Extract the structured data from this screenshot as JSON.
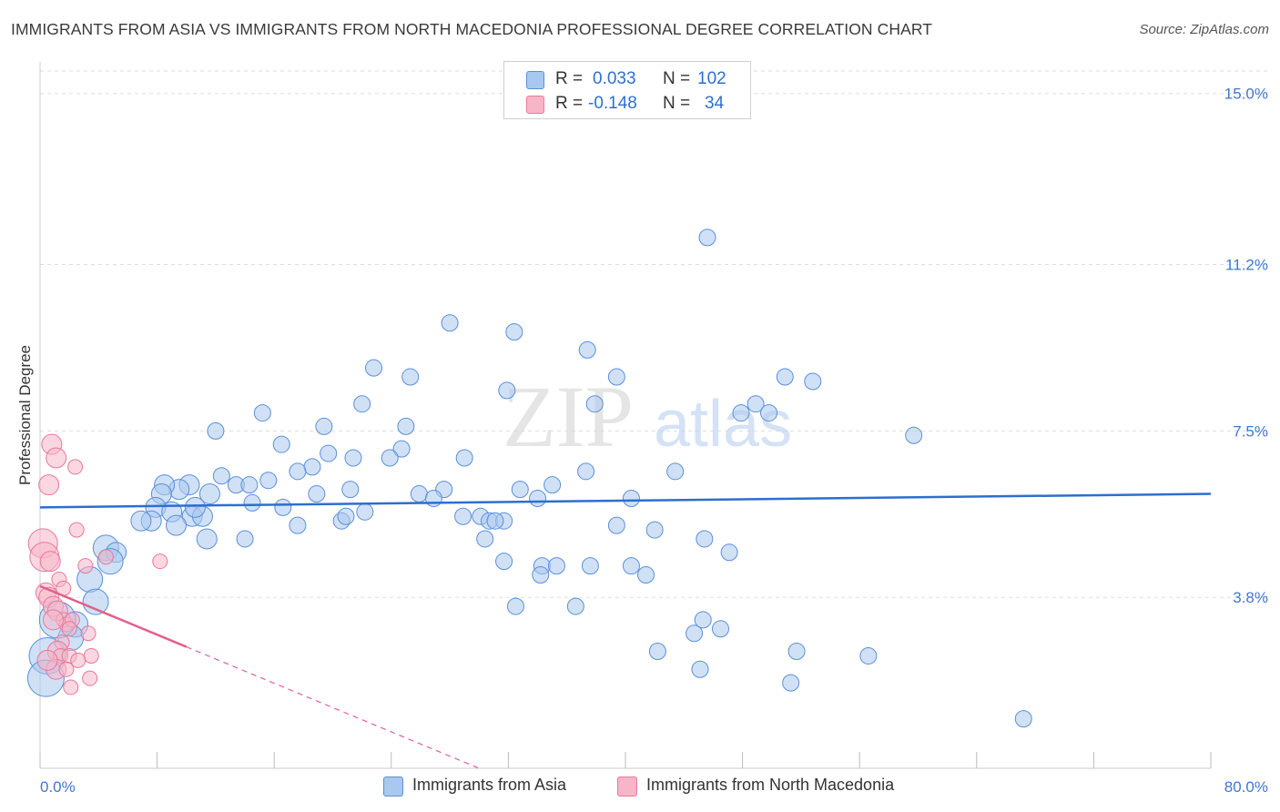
{
  "title": "IMMIGRANTS FROM ASIA VS IMMIGRANTS FROM NORTH MACEDONIA PROFESSIONAL DEGREE CORRELATION CHART",
  "source": "Source: ZipAtlas.com",
  "watermark": {
    "zip": "ZIP",
    "atlas": "atlas"
  },
  "legend_top": {
    "rows": [
      {
        "r_label": "R = ",
        "r_value": "0.033",
        "n_label": "N = ",
        "n_value": "102"
      },
      {
        "r_label": "R = ",
        "r_value": "-0.148",
        "n_label": "N = ",
        "n_value": "34"
      }
    ]
  },
  "colors": {
    "asia_fill": "#a9c8ef",
    "asia_stroke": "#5b8fd8",
    "asia_line": "#2c6fcf",
    "macedonia_fill": "#f6b6c8",
    "macedonia_stroke": "#e8789c",
    "macedonia_line": "#e2608a",
    "grid": "#dddddd",
    "axis_text": "#3f77d0"
  },
  "chart_data": {
    "type": "scatter",
    "title": "IMMIGRANTS FROM ASIA VS IMMIGRANTS FROM NORTH MACEDONIA PROFESSIONAL DEGREE CORRELATION CHART",
    "xlabel": "",
    "ylabel": "Professional Degree",
    "xlim": [
      0,
      80
    ],
    "ylim": [
      0,
      15.5
    ],
    "x_tick_labels": [
      "0.0%",
      "80.0%"
    ],
    "y_ticks": [
      3.8,
      7.5,
      11.2,
      15.0
    ],
    "y_tick_labels": [
      "3.8%",
      "7.5%",
      "11.2%",
      "15.0%"
    ],
    "grid": true,
    "legend_position": "bottom",
    "series": [
      {
        "name": "Immigrants from Asia",
        "R": 0.033,
        "N": 102,
        "trend": {
          "x": [
            0,
            80
          ],
          "y": [
            5.8,
            6.1
          ]
        },
        "points": [
          [
            45.6,
            11.8
          ],
          [
            28.0,
            9.9
          ],
          [
            32.4,
            9.7
          ],
          [
            37.4,
            9.3
          ],
          [
            22.8,
            8.9
          ],
          [
            25.3,
            8.7
          ],
          [
            39.4,
            8.7
          ],
          [
            50.9,
            8.7
          ],
          [
            52.8,
            8.6
          ],
          [
            31.9,
            8.4
          ],
          [
            22.0,
            8.1
          ],
          [
            37.9,
            8.1
          ],
          [
            15.2,
            7.9
          ],
          [
            47.9,
            7.9
          ],
          [
            48.9,
            8.1
          ],
          [
            49.8,
            7.9
          ],
          [
            19.4,
            7.6
          ],
          [
            25.0,
            7.6
          ],
          [
            12.0,
            7.5
          ],
          [
            59.7,
            7.4
          ],
          [
            16.5,
            7.2
          ],
          [
            24.7,
            7.1
          ],
          [
            23.9,
            6.9
          ],
          [
            19.7,
            7.0
          ],
          [
            21.4,
            6.9
          ],
          [
            29.0,
            6.9
          ],
          [
            18.6,
            6.7
          ],
          [
            17.6,
            6.6
          ],
          [
            37.3,
            6.6
          ],
          [
            43.4,
            6.6
          ],
          [
            12.4,
            6.5
          ],
          [
            15.6,
            6.4
          ],
          [
            21.2,
            6.2
          ],
          [
            13.4,
            6.3
          ],
          [
            14.3,
            6.3
          ],
          [
            10.2,
            6.3
          ],
          [
            9.5,
            6.2
          ],
          [
            8.5,
            6.3
          ],
          [
            32.8,
            6.2
          ],
          [
            35.0,
            6.3
          ],
          [
            27.6,
            6.2
          ],
          [
            18.9,
            6.1
          ],
          [
            25.9,
            6.1
          ],
          [
            11.6,
            6.1
          ],
          [
            34.0,
            6.0
          ],
          [
            14.5,
            5.9
          ],
          [
            8.3,
            6.1
          ],
          [
            40.4,
            6.0
          ],
          [
            16.6,
            5.8
          ],
          [
            7.9,
            5.8
          ],
          [
            9.0,
            5.7
          ],
          [
            22.2,
            5.7
          ],
          [
            20.6,
            5.5
          ],
          [
            20.9,
            5.6
          ],
          [
            28.9,
            5.6
          ],
          [
            30.1,
            5.6
          ],
          [
            30.7,
            5.5
          ],
          [
            31.7,
            5.5
          ],
          [
            10.4,
            5.6
          ],
          [
            11.1,
            5.6
          ],
          [
            7.6,
            5.5
          ],
          [
            9.3,
            5.4
          ],
          [
            17.6,
            5.4
          ],
          [
            39.4,
            5.4
          ],
          [
            42.0,
            5.3
          ],
          [
            11.4,
            5.1
          ],
          [
            14.0,
            5.1
          ],
          [
            30.4,
            5.1
          ],
          [
            45.4,
            5.1
          ],
          [
            47.1,
            4.8
          ],
          [
            4.5,
            4.9
          ],
          [
            5.2,
            4.8
          ],
          [
            4.8,
            4.6
          ],
          [
            31.7,
            4.6
          ],
          [
            34.3,
            4.5
          ],
          [
            35.3,
            4.5
          ],
          [
            37.6,
            4.5
          ],
          [
            40.4,
            4.5
          ],
          [
            41.4,
            4.3
          ],
          [
            34.2,
            4.3
          ],
          [
            3.4,
            4.2
          ],
          [
            3.8,
            3.7
          ],
          [
            32.5,
            3.6
          ],
          [
            36.6,
            3.6
          ],
          [
            2.4,
            3.2
          ],
          [
            2.1,
            2.9
          ],
          [
            44.7,
            3.0
          ],
          [
            45.3,
            3.3
          ],
          [
            46.5,
            3.1
          ],
          [
            42.2,
            2.6
          ],
          [
            51.7,
            2.6
          ],
          [
            56.6,
            2.5
          ],
          [
            45.1,
            2.2
          ],
          [
            51.3,
            1.9
          ],
          [
            67.2,
            1.1
          ],
          [
            0.5,
            2.5
          ],
          [
            0.4,
            2.0
          ],
          [
            1.2,
            3.3
          ],
          [
            6.9,
            5.5
          ],
          [
            10.6,
            5.8
          ],
          [
            31.1,
            5.5
          ],
          [
            26.9,
            6.0
          ]
        ]
      },
      {
        "name": "Immigrants from North Macedonia",
        "R": -0.148,
        "N": 34,
        "trend": {
          "x": [
            0,
            10
          ],
          "y": [
            4.05,
            2.7
          ]
        },
        "trend_extension": {
          "x": [
            10,
            30
          ],
          "y": [
            2.7,
            0.0
          ]
        },
        "points": [
          [
            0.8,
            7.2
          ],
          [
            1.1,
            6.9
          ],
          [
            2.4,
            6.7
          ],
          [
            0.6,
            6.3
          ],
          [
            2.5,
            5.3
          ],
          [
            0.2,
            5.0
          ],
          [
            0.3,
            4.7
          ],
          [
            0.7,
            4.6
          ],
          [
            8.2,
            4.6
          ],
          [
            3.1,
            4.5
          ],
          [
            1.3,
            4.2
          ],
          [
            1.6,
            4.0
          ],
          [
            0.4,
            3.9
          ],
          [
            0.6,
            3.8
          ],
          [
            0.9,
            3.6
          ],
          [
            1.2,
            3.5
          ],
          [
            1.6,
            3.3
          ],
          [
            1.8,
            3.2
          ],
          [
            2.2,
            3.3
          ],
          [
            2.0,
            3.1
          ],
          [
            1.5,
            2.8
          ],
          [
            3.3,
            3.0
          ],
          [
            1.2,
            2.6
          ],
          [
            1.4,
            2.5
          ],
          [
            2.0,
            2.5
          ],
          [
            2.6,
            2.4
          ],
          [
            3.5,
            2.5
          ],
          [
            1.1,
            2.2
          ],
          [
            1.8,
            2.2
          ],
          [
            3.4,
            2.0
          ],
          [
            2.1,
            1.8
          ],
          [
            0.5,
            2.4
          ],
          [
            4.5,
            4.7
          ],
          [
            0.9,
            3.3
          ]
        ]
      }
    ],
    "legend": [
      "Immigrants from Asia",
      "Immigrants from North Macedonia"
    ]
  }
}
